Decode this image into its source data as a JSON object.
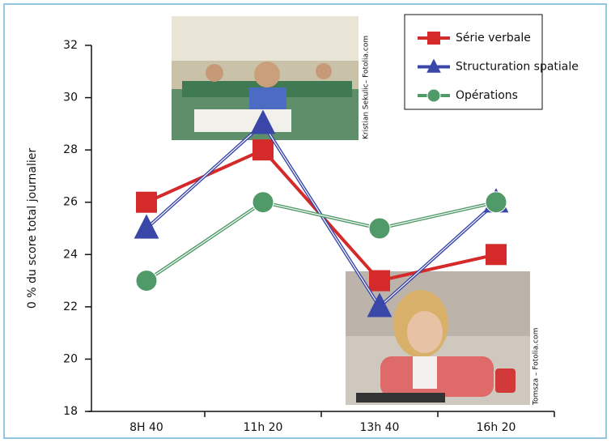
{
  "chart_data": {
    "type": "line",
    "y_label": "0 % du score total journalier",
    "categories": [
      "8H 40",
      "11h 20",
      "13h 40",
      "16h 20"
    ],
    "series": [
      {
        "name": "Série verbale",
        "color": "#d42a2a",
        "marker": "square",
        "values": [
          26,
          28,
          23,
          24
        ]
      },
      {
        "name": "Structuration spatiale",
        "color": "#3a47a8",
        "marker": "triangle",
        "values": [
          25,
          29,
          22,
          26
        ]
      },
      {
        "name": "Opérations",
        "color": "#4f9a68",
        "marker": "circle",
        "values": [
          23,
          26,
          25,
          26
        ]
      }
    ],
    "ylim": [
      18,
      32
    ],
    "yticks": [
      18,
      20,
      22,
      24,
      26,
      28,
      30,
      32
    ],
    "legend": "top-right",
    "image_credits": [
      "Kristian Sekulic– Fotolia.com",
      "Tomsza – Fotolia.com"
    ]
  }
}
